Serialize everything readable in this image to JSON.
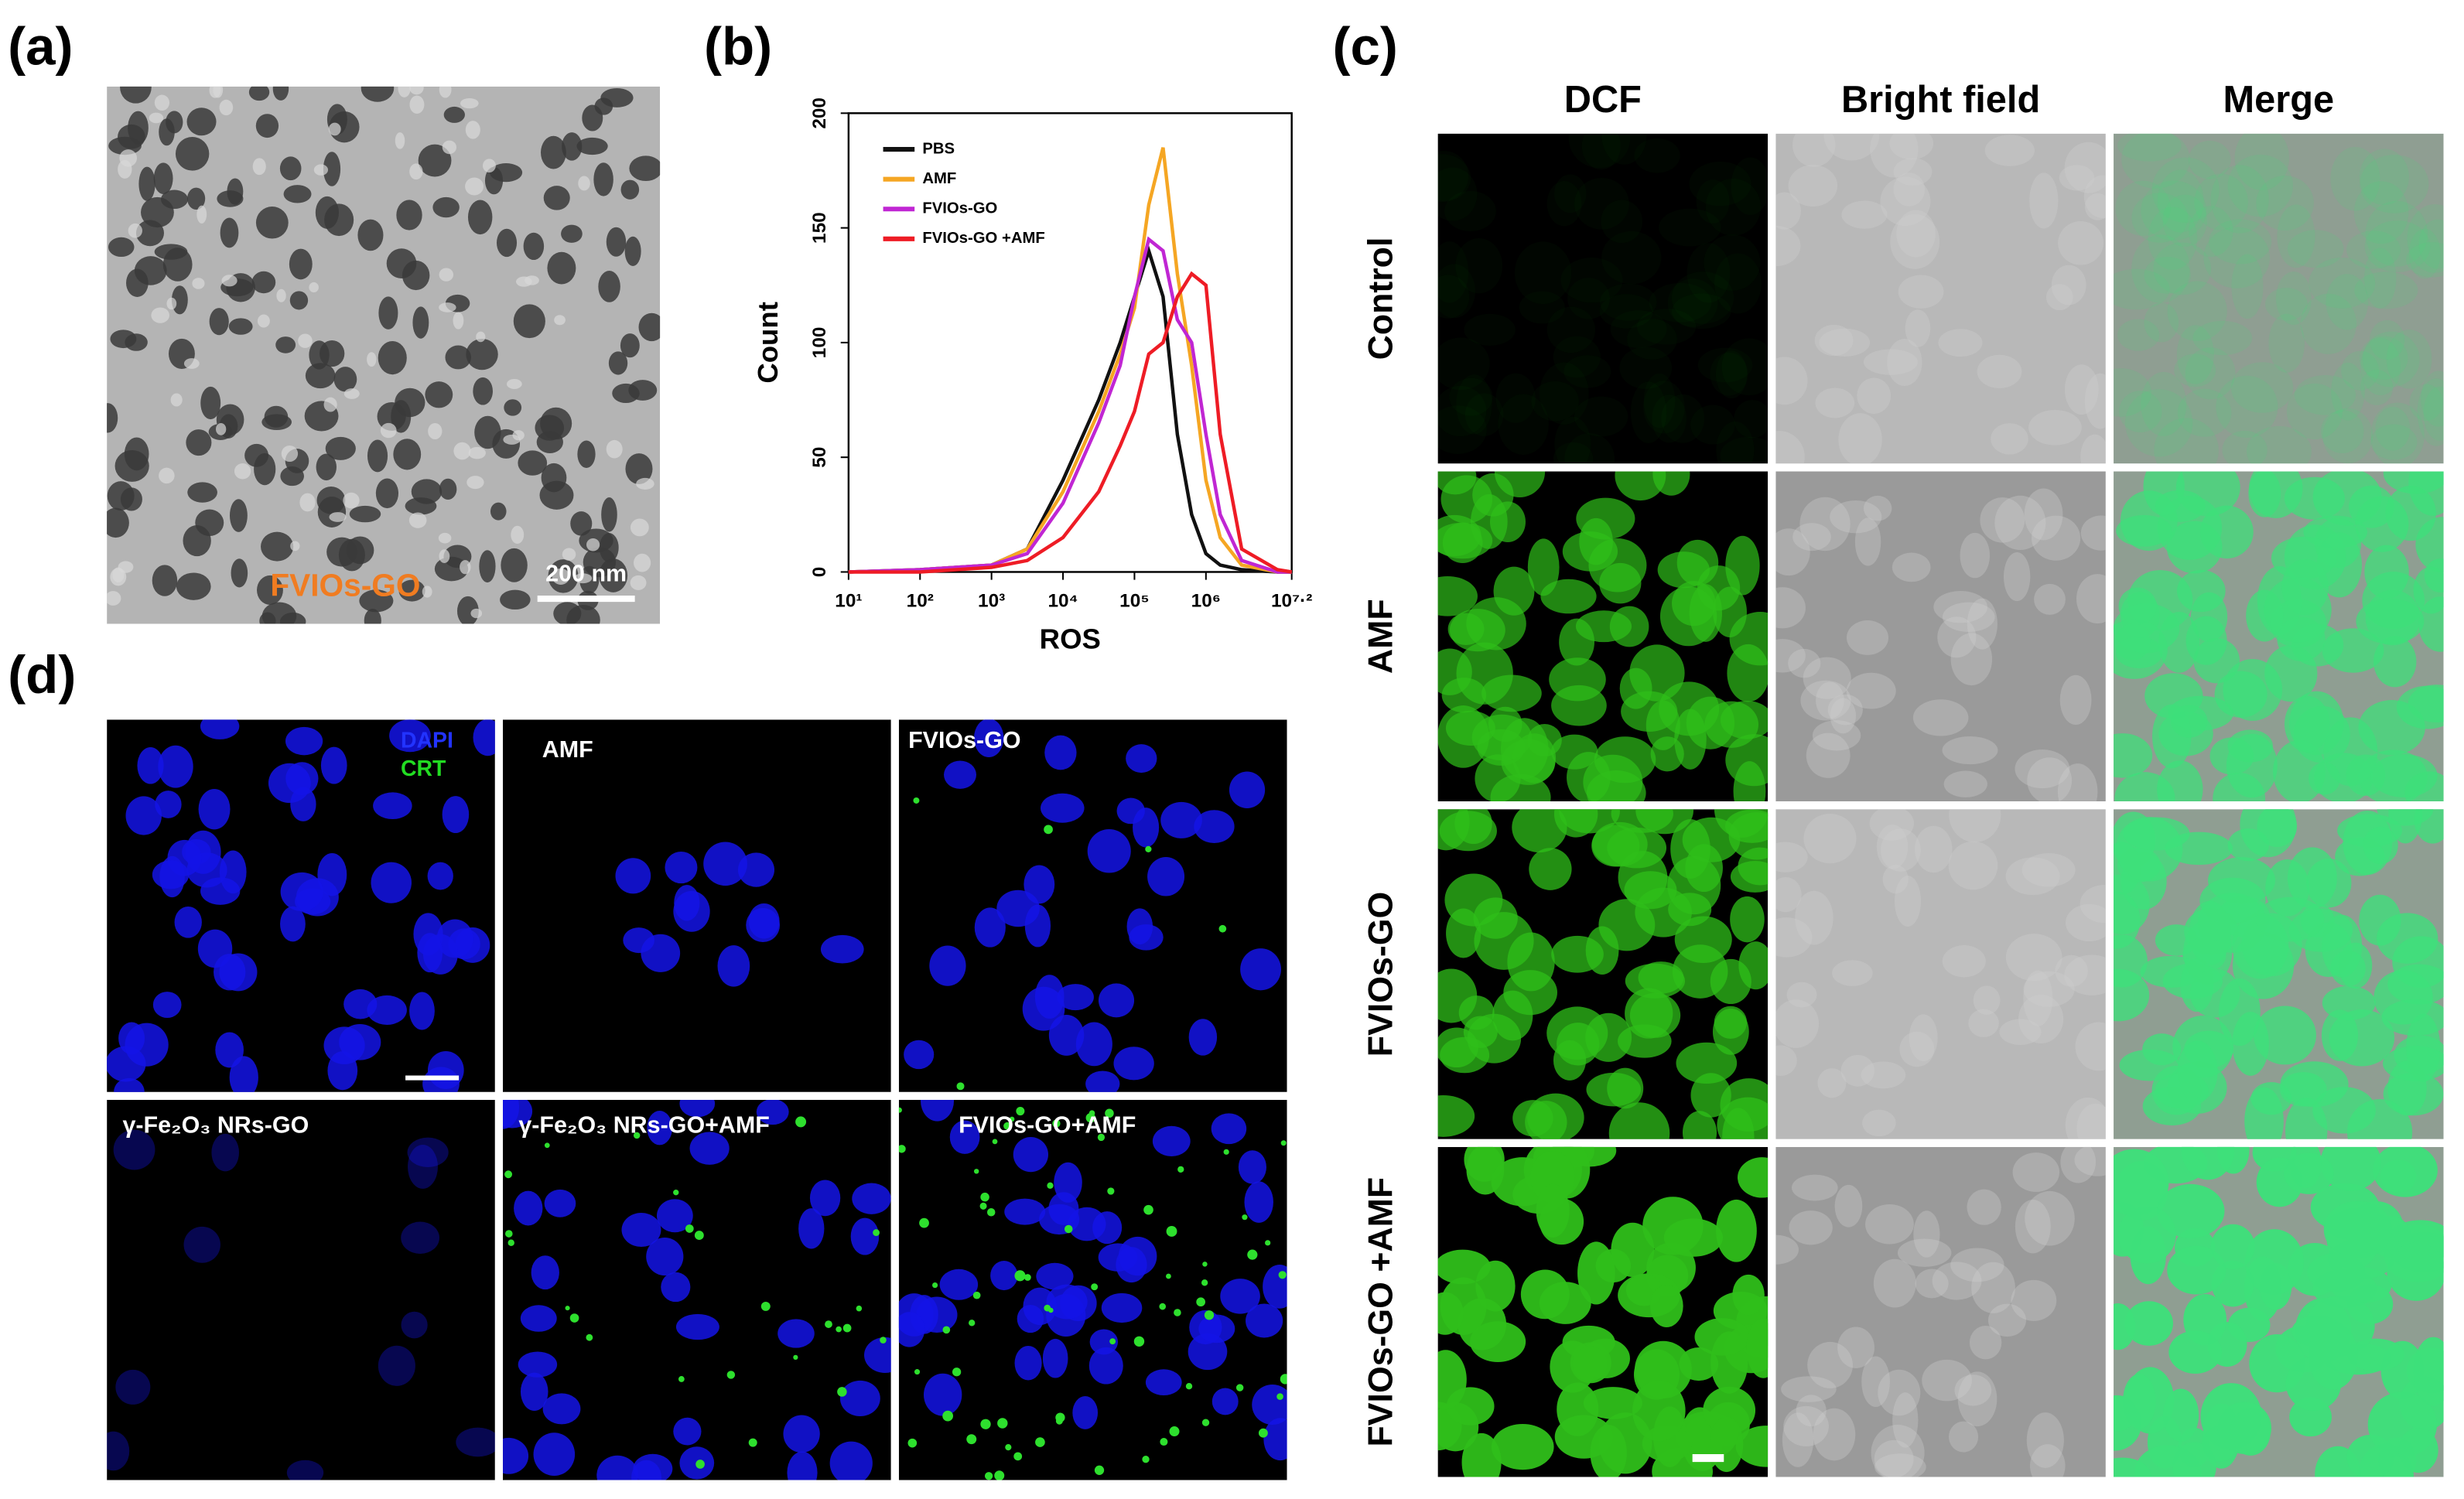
{
  "panel_labels": [
    "(a)",
    "(b)",
    "(c)",
    "(d)"
  ],
  "panel_a": {
    "label": "FVIOs-GO",
    "scale_bar": "200 nm"
  },
  "chart_data": {
    "type": "line",
    "x_label": "ROS",
    "y_label": "Count",
    "log_x": true,
    "x": [
      10,
      100,
      1000,
      3162,
      10000,
      31623,
      63096,
      100000,
      158489,
      251189,
      398107,
      630957,
      1000000,
      1584893,
      3162278,
      10000000,
      15848932
    ],
    "series": [
      {
        "name": "PBS",
        "color": "#111111",
        "values": [
          0,
          1,
          3,
          10,
          40,
          75,
          100,
          120,
          140,
          120,
          60,
          25,
          8,
          3,
          1,
          0,
          0
        ]
      },
      {
        "name": "AMF",
        "color": "#f5a623",
        "values": [
          0,
          1,
          3,
          10,
          35,
          70,
          95,
          115,
          160,
          185,
          130,
          90,
          40,
          15,
          3,
          0,
          0
        ]
      },
      {
        "name": "FVIOs-GO",
        "color": "#c026d3",
        "values": [
          0,
          1,
          3,
          8,
          30,
          65,
          90,
          120,
          145,
          140,
          110,
          100,
          60,
          25,
          5,
          0,
          0
        ]
      },
      {
        "name": "FVIOs-GO +AMF",
        "color": "#ee1c25",
        "values": [
          0,
          0,
          2,
          5,
          15,
          35,
          55,
          70,
          95,
          100,
          120,
          130,
          125,
          60,
          10,
          1,
          0
        ]
      }
    ],
    "xlim": [
      10,
      15848932
    ],
    "xticks": [
      {
        "value": 10,
        "label": "10¹"
      },
      {
        "value": 100,
        "label": "10²"
      },
      {
        "value": 1000,
        "label": "10³"
      },
      {
        "value": 10000,
        "label": "10⁴"
      },
      {
        "value": 100000,
        "label": "10⁵"
      },
      {
        "value": 1000000,
        "label": "10⁶"
      },
      {
        "value": 15848932,
        "label": "10⁷·²"
      }
    ],
    "ylim": [
      0,
      200
    ],
    "yticks": [
      0,
      50,
      100,
      150,
      200
    ]
  },
  "panel_c": {
    "columns": [
      "DCF",
      "Bright field",
      "Merge"
    ],
    "rows": [
      "Control",
      "AMF",
      "FVIOs-GO",
      "FVIOs-GO +AMF"
    ]
  },
  "panel_d": {
    "legend": [
      "DAPI",
      "CRT"
    ],
    "labels": [
      "AMF",
      "FVIOs-GO",
      "γ-Fe₂O₃ NRs-GO",
      "γ-Fe₂O₃ NRs-GO+AMF",
      "FVIOs-GO+AMF"
    ]
  }
}
